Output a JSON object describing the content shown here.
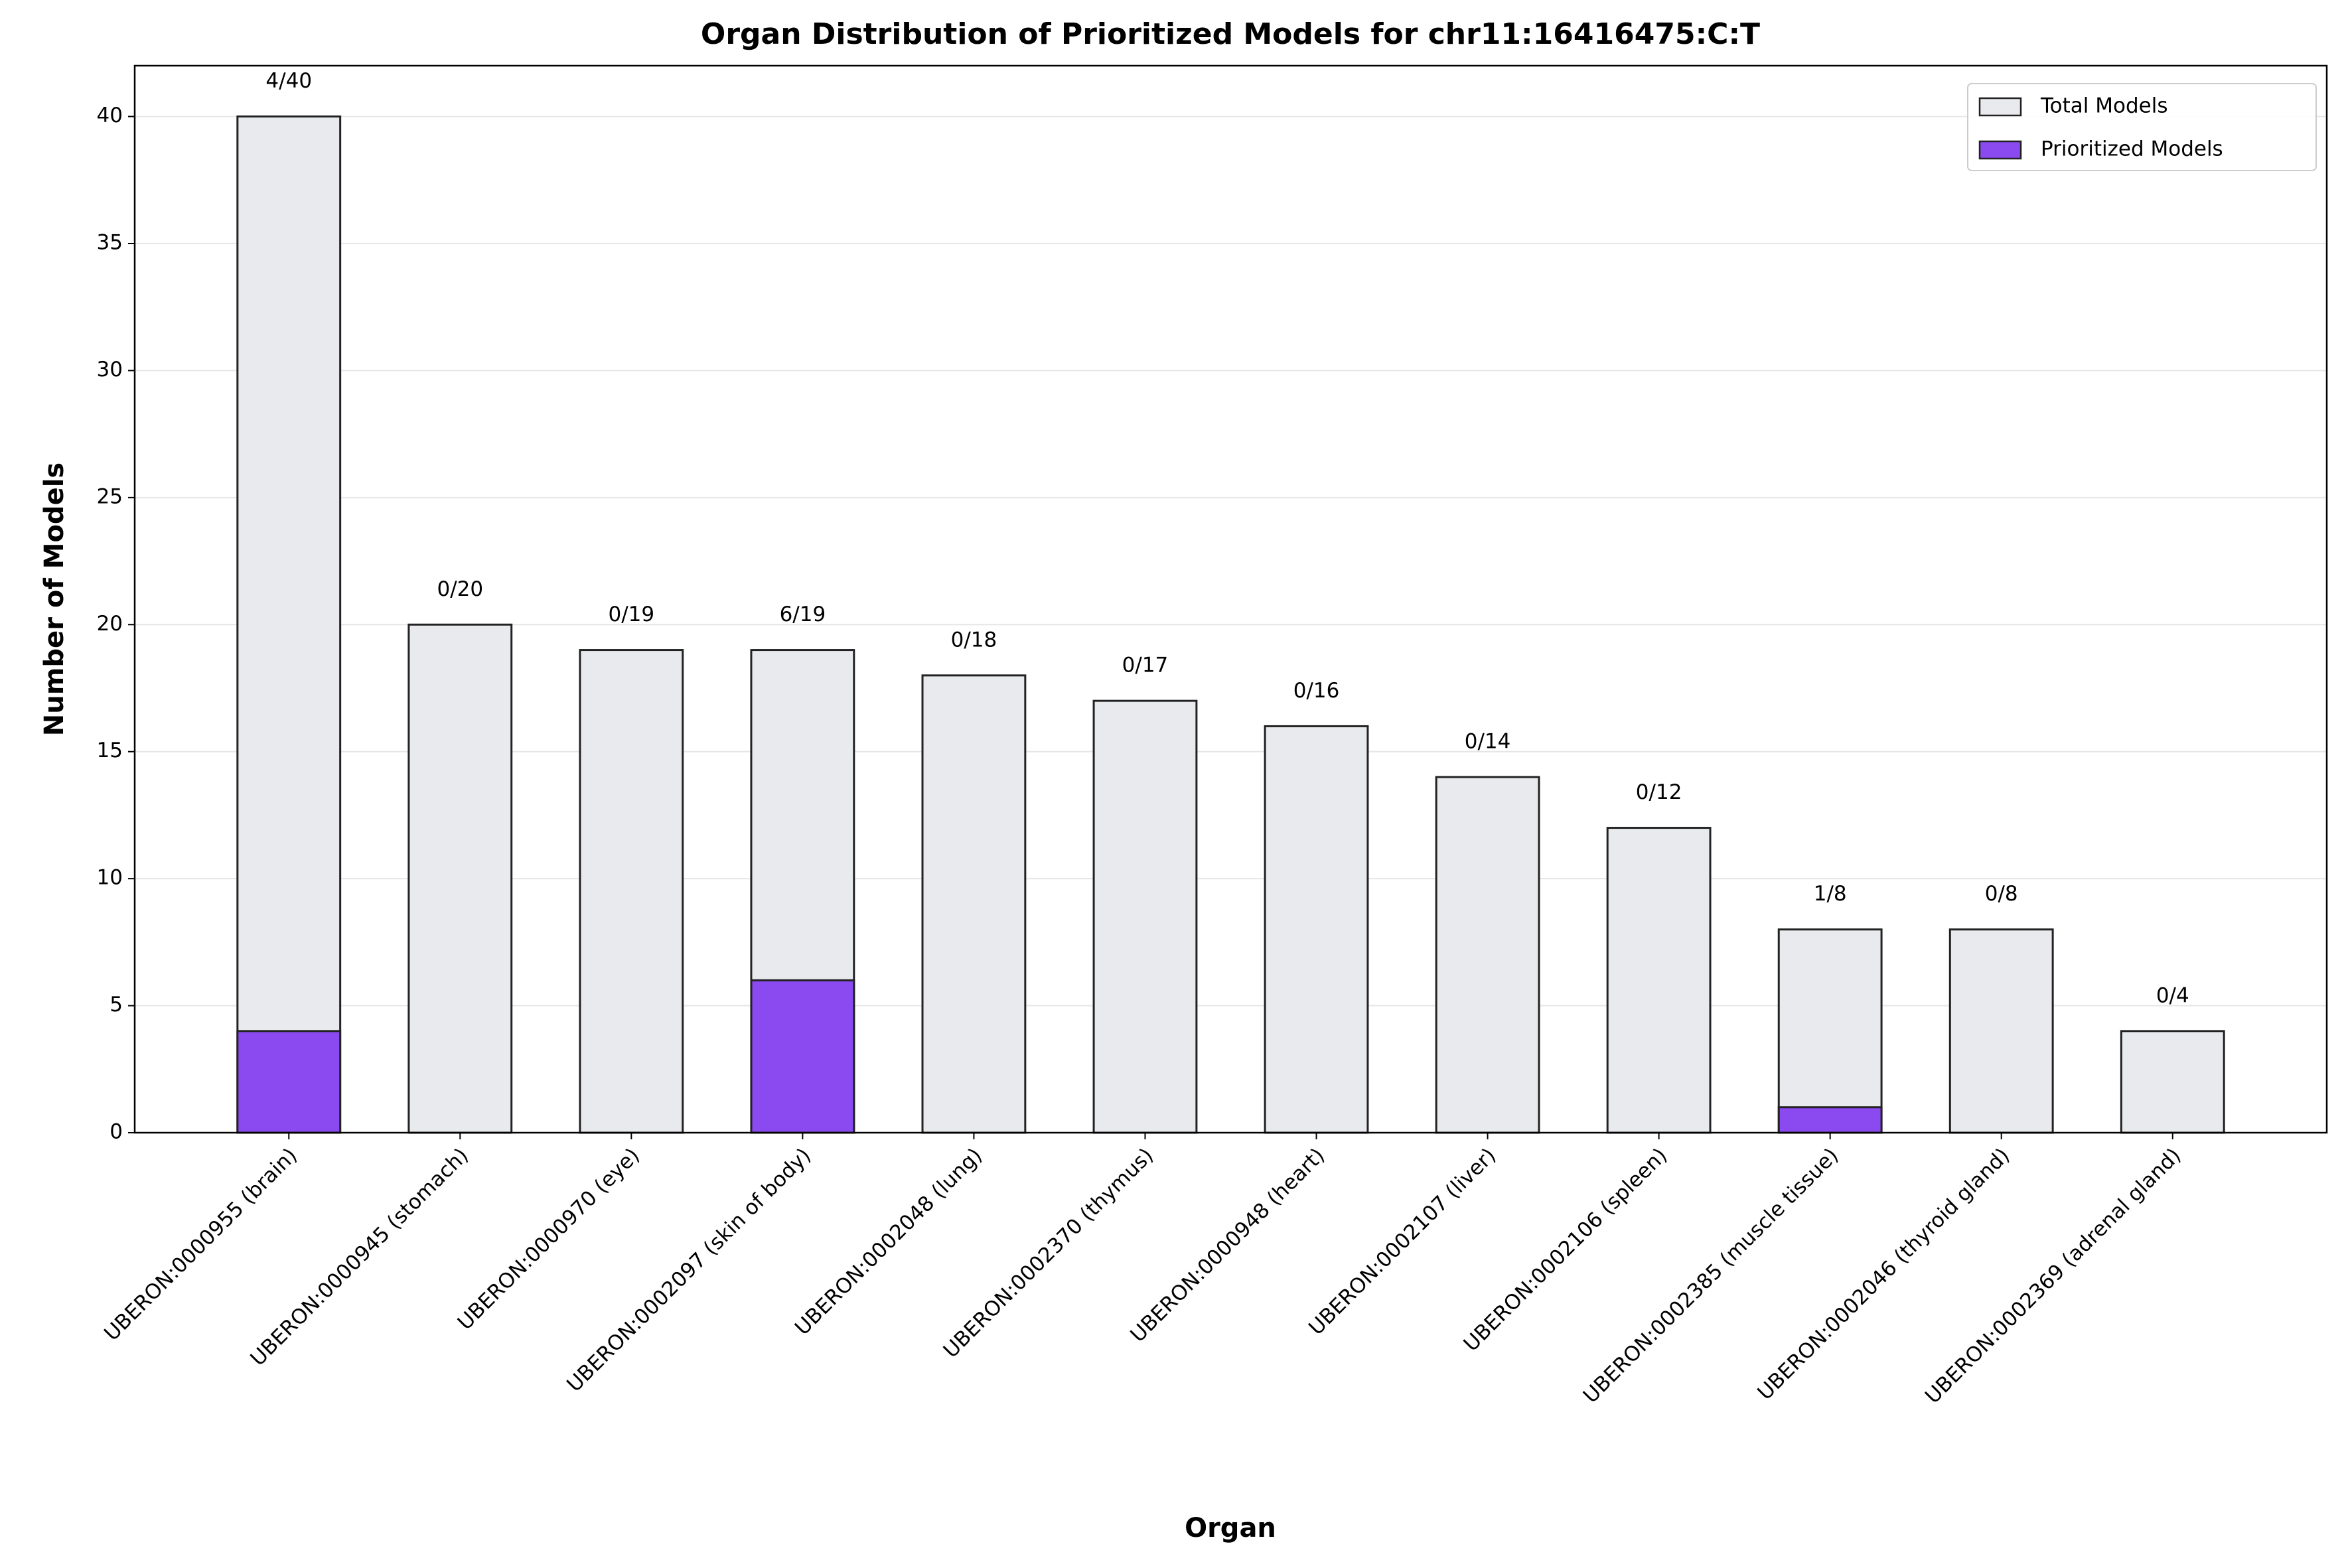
{
  "chart_data": {
    "type": "bar",
    "title": "Organ Distribution of Prioritized Models for chr11:16416475:C:T",
    "xlabel": "Organ",
    "ylabel": "Number of Models",
    "categories": [
      "UBERON:0000955 (brain)",
      "UBERON:0000945 (stomach)",
      "UBERON:0000970 (eye)",
      "UBERON:0002097 (skin of body)",
      "UBERON:0002048 (lung)",
      "UBERON:0002370 (thymus)",
      "UBERON:0000948 (heart)",
      "UBERON:0002107 (liver)",
      "UBERON:0002106 (spleen)",
      "UBERON:0002385 (muscle tissue)",
      "UBERON:0002046 (thyroid gland)",
      "UBERON:0002369 (adrenal gland)"
    ],
    "series": [
      {
        "name": "Total Models",
        "color": "#e9eaee",
        "values": [
          40,
          20,
          19,
          19,
          18,
          17,
          16,
          14,
          12,
          8,
          8,
          4
        ],
        "value_labels": [
          "4/40",
          "0/20",
          "0/19",
          "6/19",
          "0/18",
          "0/17",
          "0/16",
          "0/14",
          "0/12",
          "1/8",
          "0/8",
          "0/4"
        ]
      },
      {
        "name": "Prioritized Models",
        "color": "#8a4af0",
        "values": [
          4,
          0,
          0,
          6,
          0,
          0,
          0,
          0,
          0,
          1,
          0,
          0
        ]
      }
    ],
    "ylim": [
      0,
      42
    ],
    "yticks": [
      0,
      5,
      10,
      15,
      20,
      25,
      30,
      35,
      40
    ],
    "grid": true,
    "legend": "upper right"
  }
}
